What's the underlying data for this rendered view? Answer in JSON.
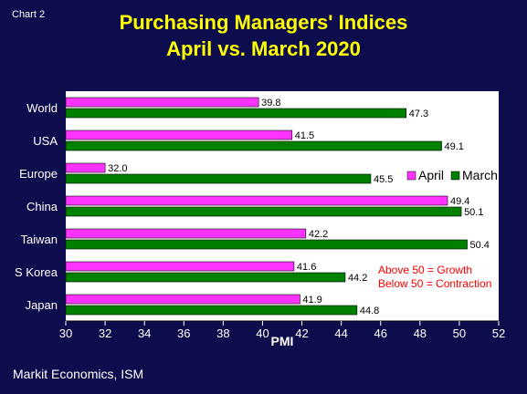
{
  "chart_label": "Chart 2",
  "source": "Markit Economics, ISM",
  "colors": {
    "background": "#0d0d4d",
    "title": "#ffff00",
    "april": "#ff33ff",
    "march": "#008000",
    "annotation": "#ff0000",
    "text": "#ffffff"
  },
  "chart_data": {
    "type": "bar",
    "orientation": "horizontal",
    "title": [
      "Purchasing Managers' Indices",
      "April vs. March 2020"
    ],
    "categories": [
      "World",
      "USA",
      "Europe",
      "China",
      "Taiwan",
      "S Korea",
      "Japan"
    ],
    "series": [
      {
        "name": "April",
        "values": [
          39.8,
          41.5,
          32.0,
          49.4,
          42.2,
          41.6,
          41.9
        ]
      },
      {
        "name": "March",
        "values": [
          47.3,
          49.1,
          45.5,
          50.1,
          50.4,
          44.2,
          44.8
        ]
      }
    ],
    "value_labels": {
      "April": [
        "39.8",
        "41.5",
        "32.0",
        "49.4",
        "42.2",
        "41.6",
        "41.9"
      ],
      "March": [
        "47.3",
        "49.1",
        "45.5",
        "50.1",
        "50.4",
        "44.2",
        "44.8"
      ]
    },
    "xlabel": "PMI",
    "ylabel": "",
    "xlim": [
      30,
      52
    ],
    "xticks": [
      30,
      32,
      34,
      36,
      38,
      40,
      42,
      44,
      46,
      48,
      50,
      52
    ],
    "grid": false,
    "legend": {
      "position": "right",
      "entries": [
        "April",
        "March"
      ]
    },
    "annotations": [
      "Above 50 = Growth",
      "Below 50 = Contraction"
    ]
  }
}
